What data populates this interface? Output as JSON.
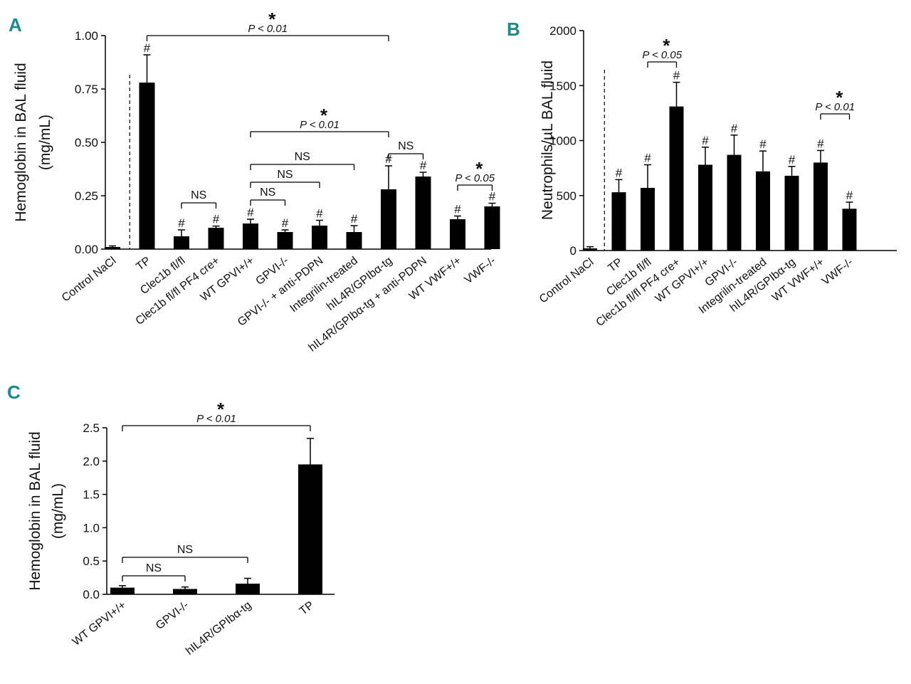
{
  "chart_data": [
    {
      "panel": "A",
      "type": "bar",
      "ylabel_line1": "Hemoglobin in BAL fluid",
      "ylabel_line2": "(mg/mL)",
      "ylim": [
        0,
        1.0
      ],
      "yticks": [
        0,
        0.25,
        0.5,
        0.75,
        1.0
      ],
      "ytick_labels": [
        "0.00",
        "0.25",
        "0.50",
        "0.75",
        "1.00"
      ],
      "categories": [
        "Control NaCl",
        "TP",
        "Clec1b fl/fl",
        "Clec1b fl/fl PF4 cre+",
        "WT GPVI+/+",
        "GPVI-/-",
        "GPVI-/- + anti-PDPN",
        "Integrilin-treated",
        "hIL4R/GPIbα-tg",
        "hIL4R/GPIbα-tg + anti-PDPN",
        "WT VWF+/+",
        "VWF-/-"
      ],
      "values": [
        0.01,
        0.78,
        0.06,
        0.1,
        0.12,
        0.08,
        0.11,
        0.08,
        0.28,
        0.34,
        0.14,
        0.2
      ],
      "errors": [
        0.005,
        0.13,
        0.03,
        0.008,
        0.02,
        0.01,
        0.025,
        0.03,
        0.11,
        0.02,
        0.015,
        0.015
      ],
      "marks": [
        "",
        "#",
        "#",
        "#",
        "#",
        "#",
        "#",
        "#",
        "#",
        "#",
        "#",
        "#"
      ],
      "divider_after": 0,
      "annotations": [
        {
          "from": 1,
          "to": 8,
          "label": "P < 0.01",
          "star": "*"
        },
        {
          "from": 4,
          "to": 8,
          "label": "P < 0.01",
          "star": "*"
        },
        {
          "from": 8,
          "to": 9,
          "label": "NS"
        },
        {
          "from": 4,
          "to": 7,
          "label": "NS"
        },
        {
          "from": 4,
          "to": 6,
          "label": "NS"
        },
        {
          "from": 4,
          "to": 5,
          "label": "NS"
        },
        {
          "from": 2,
          "to": 3,
          "label": "NS"
        },
        {
          "from": 10,
          "to": 11,
          "label": "P < 0.05",
          "star": "*"
        }
      ]
    },
    {
      "panel": "B",
      "type": "bar",
      "ylabel_line1": "Neutrophils/µL BAL fluid",
      "ylabel_line2": "",
      "ylim": [
        0,
        2000
      ],
      "yticks": [
        0,
        500,
        1000,
        1500,
        2000
      ],
      "ytick_labels": [
        "0",
        "500",
        "1000",
        "1500",
        "2000"
      ],
      "categories": [
        "Control NaCl",
        "TP",
        "Clec1b fl/fl",
        "Clec1b fl/fl PF4 cre+",
        "WT GPVI+/+",
        "GPVI-/-",
        "Integrilin-treated",
        "hIL4R/GPIbα-tg",
        "WT VWF+/+",
        "VWF-/-"
      ],
      "values": [
        20,
        530,
        570,
        1310,
        780,
        870,
        720,
        680,
        800,
        380
      ],
      "errors": [
        15,
        115,
        210,
        220,
        160,
        180,
        185,
        85,
        110,
        60
      ],
      "marks": [
        "",
        "#",
        "#",
        "#",
        "#",
        "#",
        "#",
        "#",
        "#",
        "#"
      ],
      "divider_after": 0,
      "annotations": [
        {
          "from": 2,
          "to": 3,
          "label": "P < 0.05",
          "star": "*"
        },
        {
          "from": 8,
          "to": 9,
          "label": "P < 0.01",
          "star": "*"
        }
      ]
    },
    {
      "panel": "C",
      "type": "bar",
      "ylabel_line1": "Hemoglobin in BAL fluid",
      "ylabel_line2": "(mg/mL)",
      "ylim": [
        0,
        2.5
      ],
      "yticks": [
        0,
        0.5,
        1.0,
        1.5,
        2.0,
        2.5
      ],
      "ytick_labels": [
        "0.0",
        "0.5",
        "1.0",
        "1.5",
        "2.0",
        "2.5"
      ],
      "categories": [
        "WT GPVI+/+",
        "GPVI-/-",
        "hIL4R/GPIbα-tg",
        "TP"
      ],
      "values": [
        0.1,
        0.08,
        0.16,
        1.95
      ],
      "errors": [
        0.03,
        0.03,
        0.08,
        0.39
      ],
      "marks": [
        "",
        "",
        "",
        ""
      ],
      "divider_after": -1,
      "annotations": [
        {
          "from": 0,
          "to": 3,
          "label": "P < 0.01",
          "star": "*"
        },
        {
          "from": 0,
          "to": 2,
          "label": "NS"
        },
        {
          "from": 0,
          "to": 1,
          "label": "NS"
        }
      ]
    }
  ]
}
